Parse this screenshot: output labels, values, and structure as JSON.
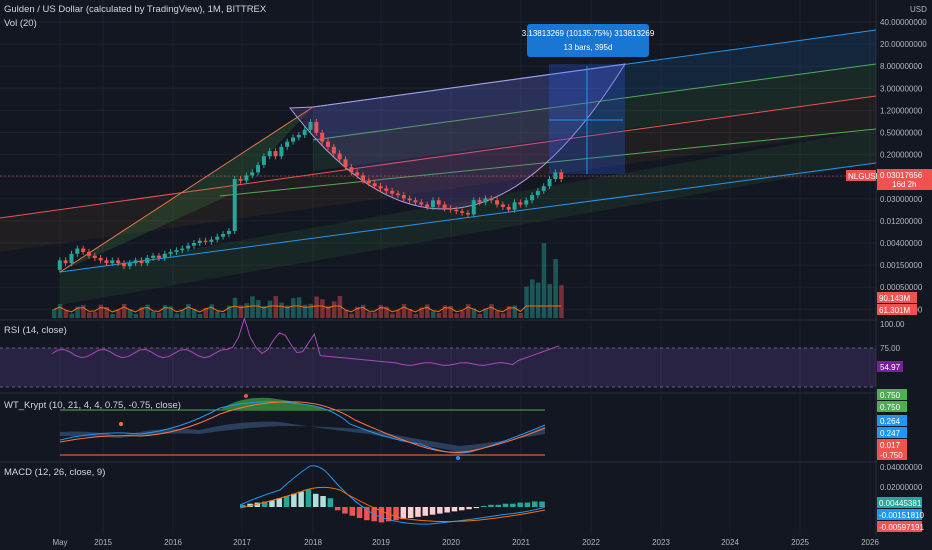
{
  "header": {
    "symbol_title": "Gulden / US Dollar (calculated by TradingView), 1M, BITTREX",
    "vol_title": "Vol (20)",
    "currency": "USD"
  },
  "measure_tooltip": {
    "line1": "3.13813269 (10135.75%) 313813269",
    "line2": "13 bars, 395d"
  },
  "colors": {
    "background": "#131722",
    "grid": "#1e222d",
    "up": "#26a69a",
    "down": "#ef5350",
    "channel_blue": "#2196f3",
    "rsi_purple": "#9c27b0",
    "wt_green": "#4caf50",
    "macd_blue": "#2196f3",
    "macd_orange": "#ff6d00"
  },
  "chart_data": [
    {
      "type": "candlestick",
      "title": "Gulden / US Dollar (calculated by TradingView), 1M, BITTREX",
      "scale": "log",
      "price_axis_ticks": [
        "40.00000000",
        "20.00000000",
        "8.00000000",
        "3.00000000",
        "1.20000000",
        "0.50000000",
        "0.20000000",
        "0.08000000",
        "0.03000000",
        "0.01200000",
        "0.00400000",
        "0.00150000",
        "0.00050000",
        "0.00015000"
      ],
      "time_axis_ticks": [
        "May",
        "2015",
        "2016",
        "2017",
        "2018",
        "2019",
        "2020",
        "2021",
        "2022",
        "2023",
        "2024",
        "2025",
        "2026"
      ],
      "last_price": {
        "symbol": "NLGUSD",
        "value": "0.03017656",
        "countdown": "16d 2h"
      },
      "notes": "Monthly candles from May 2014 to May 2021; price rose from ~0.0008 to peak ~0.35 in Jan 2018, fell to ~0.006 in 2020, recovered to ~0.03 in 2021"
    },
    {
      "type": "bar",
      "title": "Vol (20)",
      "values_labels": [
        "90.143M",
        "61.301M"
      ],
      "notes": "Volume histogram with moving average; spike in early 2021"
    },
    {
      "type": "line",
      "title": "RSI (14, close)",
      "axis_ticks": [
        "100.00",
        "75.00",
        "54.97"
      ],
      "last_value": "54.97",
      "band": [
        30,
        70
      ]
    },
    {
      "type": "line",
      "title": "WT_Krypt (10, 21, 4, 4, 0.75, -0.75, close)",
      "value_labels": [
        "0.750",
        "0.750",
        "0.264",
        "0.247",
        "0.017",
        "-0.750"
      ]
    },
    {
      "type": "line",
      "title": "MACD (12, 26, close, 9)",
      "axis_ticks": [
        "0.04000000",
        "0.02000000"
      ],
      "value_labels": [
        "0.00445381",
        "-0.00151810",
        "-0.00597191"
      ]
    }
  ]
}
